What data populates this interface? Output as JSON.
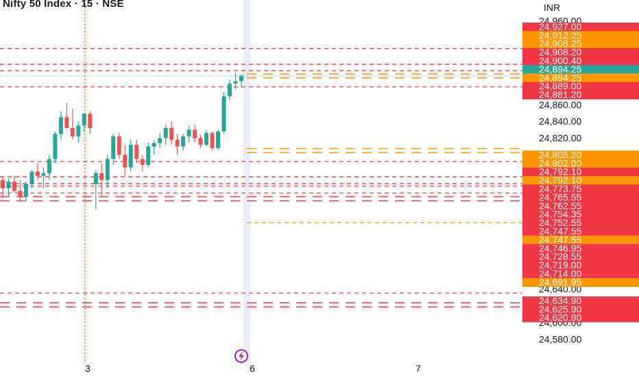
{
  "header": {
    "title": "Nifty 50 Index · 15 · NSE",
    "currency": "INR"
  },
  "event_marker": {
    "icon": "lightning-icon",
    "color": "#9c27b0"
  },
  "colors": {
    "up": "#26a69a",
    "down": "#ef5350",
    "red_line": "#f23645",
    "orange_line": "#ff9800",
    "teal_label": "#26a69a"
  },
  "chart_data": {
    "type": "candlestick",
    "title": "Nifty 50 Index · 15 · NSE",
    "ylabel": "INR",
    "ylim": [
      24572,
      24968
    ],
    "y_ticks": [
      "24,960.00",
      "24,860.00",
      "24,840.00",
      "24,820.00",
      "24,640.00",
      "24,600.00",
      "24,580.00"
    ],
    "x_ticks": [
      "3",
      "6",
      "7"
    ],
    "grid": false,
    "last_price": 24894.25,
    "candles": [
      {
        "o": 24770,
        "h": 24775,
        "l": 24748,
        "c": 24760
      },
      {
        "o": 24760,
        "h": 24772,
        "l": 24750,
        "c": 24768
      },
      {
        "o": 24768,
        "h": 24775,
        "l": 24755,
        "c": 24757
      },
      {
        "o": 24757,
        "h": 24770,
        "l": 24745,
        "c": 24750
      },
      {
        "o": 24750,
        "h": 24768,
        "l": 24745,
        "c": 24765
      },
      {
        "o": 24765,
        "h": 24782,
        "l": 24760,
        "c": 24780
      },
      {
        "o": 24780,
        "h": 24790,
        "l": 24770,
        "c": 24775
      },
      {
        "o": 24775,
        "h": 24785,
        "l": 24760,
        "c": 24778
      },
      {
        "o": 24778,
        "h": 24800,
        "l": 24770,
        "c": 24795
      },
      {
        "o": 24795,
        "h": 24828,
        "l": 24790,
        "c": 24825
      },
      {
        "o": 24825,
        "h": 24852,
        "l": 24818,
        "c": 24845
      },
      {
        "o": 24845,
        "h": 24862,
        "l": 24835,
        "c": 24832
      },
      {
        "o": 24832,
        "h": 24855,
        "l": 24818,
        "c": 24822
      },
      {
        "o": 24822,
        "h": 24840,
        "l": 24815,
        "c": 24835
      },
      {
        "o": 24835,
        "h": 24850,
        "l": 24828,
        "c": 24849
      },
      {
        "o": 24849,
        "h": 24852,
        "l": 24825,
        "c": 24832
      },
      {
        "o": 24765,
        "h": 24782,
        "l": 24735,
        "c": 24778
      },
      {
        "o": 24778,
        "h": 24790,
        "l": 24750,
        "c": 24770
      },
      {
        "o": 24770,
        "h": 24800,
        "l": 24760,
        "c": 24795
      },
      {
        "o": 24795,
        "h": 24825,
        "l": 24788,
        "c": 24822
      },
      {
        "o": 24822,
        "h": 24826,
        "l": 24795,
        "c": 24800
      },
      {
        "o": 24800,
        "h": 24812,
        "l": 24775,
        "c": 24785
      },
      {
        "o": 24785,
        "h": 24818,
        "l": 24780,
        "c": 24812
      },
      {
        "o": 24812,
        "h": 24818,
        "l": 24790,
        "c": 24795
      },
      {
        "o": 24795,
        "h": 24800,
        "l": 24780,
        "c": 24788
      },
      {
        "o": 24788,
        "h": 24815,
        "l": 24785,
        "c": 24810
      },
      {
        "o": 24810,
        "h": 24818,
        "l": 24800,
        "c": 24814
      },
      {
        "o": 24814,
        "h": 24826,
        "l": 24808,
        "c": 24820
      },
      {
        "o": 24820,
        "h": 24836,
        "l": 24812,
        "c": 24832
      },
      {
        "o": 24832,
        "h": 24840,
        "l": 24812,
        "c": 24818
      },
      {
        "o": 24818,
        "h": 24825,
        "l": 24800,
        "c": 24810
      },
      {
        "o": 24810,
        "h": 24825,
        "l": 24805,
        "c": 24822
      },
      {
        "o": 24822,
        "h": 24835,
        "l": 24815,
        "c": 24830
      },
      {
        "o": 24830,
        "h": 24836,
        "l": 24815,
        "c": 24820
      },
      {
        "o": 24820,
        "h": 24824,
        "l": 24808,
        "c": 24812
      },
      {
        "o": 24812,
        "h": 24830,
        "l": 24810,
        "c": 24826
      },
      {
        "o": 24826,
        "h": 24828,
        "l": 24805,
        "c": 24808
      },
      {
        "o": 24808,
        "h": 24830,
        "l": 24806,
        "c": 24828
      },
      {
        "o": 24828,
        "h": 24875,
        "l": 24825,
        "c": 24870
      },
      {
        "o": 24870,
        "h": 24890,
        "l": 24865,
        "c": 24885
      },
      {
        "o": 24885,
        "h": 24898,
        "l": 24878,
        "c": 24888
      },
      {
        "o": 24888,
        "h": 24896,
        "l": 24880,
        "c": 24894.25
      }
    ],
    "level_lines": [
      {
        "price": 24927.0,
        "color": "#f23645",
        "style": "dashed"
      },
      {
        "price": 24908.2,
        "color": "#f23645",
        "style": "dashed"
      },
      {
        "price": 24900.4,
        "color": "#f23645",
        "style": "dashed"
      },
      {
        "price": 24894.25,
        "color": "#ff9800",
        "style": "double-dashed"
      },
      {
        "price": 24881.2,
        "color": "#f23645",
        "style": "dashed"
      },
      {
        "price": 24805.2,
        "color": "#ff9800",
        "style": "double-dashed"
      },
      {
        "price": 24792.1,
        "color": "#f23645",
        "style": "dashed"
      },
      {
        "price": 24773.75,
        "color": "#f23645",
        "style": "dashed"
      },
      {
        "price": 24765.55,
        "color": "#f23645",
        "style": "dashed"
      },
      {
        "price": 24762.55,
        "color": "#f23645",
        "style": "dashed"
      },
      {
        "price": 24754.35,
        "color": "#f23645",
        "style": "dashed"
      },
      {
        "price": 24747.55,
        "color": "#f23645",
        "style": "double-dashed"
      },
      {
        "price": 24719.0,
        "color": "#ff9800",
        "style": "dashed"
      },
      {
        "price": 24634.9,
        "color": "#f23645",
        "style": "dashed"
      },
      {
        "price": 24620.9,
        "color": "#f23645",
        "style": "double-dashed"
      }
    ],
    "price_labels": [
      {
        "text": "24,927.00",
        "price": 24927.0,
        "color": "#f23645"
      },
      {
        "text": "24,912.25",
        "price": 24912.25,
        "color": "#ff9800"
      },
      {
        "text": "24,908.25",
        "price": 24908.25,
        "color": "#ff9800"
      },
      {
        "text": "24,908.20",
        "price": 24908.2,
        "color": "#f23645"
      },
      {
        "text": "24,900.40",
        "price": 24900.4,
        "color": "#f23645"
      },
      {
        "text": "24,894.25",
        "price": 24894.25,
        "color": "#26a69a"
      },
      {
        "text": "24,894.25",
        "price": 24894.25,
        "color": "#ff9800"
      },
      {
        "text": "24,889.00",
        "price": 24889.0,
        "color": "#f23645"
      },
      {
        "text": "24,881.20",
        "price": 24881.2,
        "color": "#f23645"
      },
      {
        "text": "24,805.20",
        "price": 24805.2,
        "color": "#ff9800"
      },
      {
        "text": "24,802.00",
        "price": 24802.0,
        "color": "#ff9800"
      },
      {
        "text": "24,792.10",
        "price": 24792.1,
        "color": "#f23645"
      },
      {
        "text": "24,792.10",
        "price": 24792.1,
        "color": "#ff9800"
      },
      {
        "text": "24,773.75",
        "price": 24773.75,
        "color": "#f23645"
      },
      {
        "text": "24,765.55",
        "price": 24765.55,
        "color": "#f23645"
      },
      {
        "text": "24,762.55",
        "price": 24762.55,
        "color": "#f23645"
      },
      {
        "text": "24,754.35",
        "price": 24754.35,
        "color": "#f23645"
      },
      {
        "text": "24,752.55",
        "price": 24752.55,
        "color": "#f23645"
      },
      {
        "text": "24,747.55",
        "price": 24747.55,
        "color": "#f23645"
      },
      {
        "text": "24,747.55",
        "price": 24747.55,
        "color": "#ff9800"
      },
      {
        "text": "24,746.95",
        "price": 24746.95,
        "color": "#f23645"
      },
      {
        "text": "24,728.55",
        "price": 24728.55,
        "color": "#f23645"
      },
      {
        "text": "24,719.00",
        "price": 24719.0,
        "color": "#f23645"
      },
      {
        "text": "24,714.00",
        "price": 24714.0,
        "color": "#f23645"
      },
      {
        "text": "24,691.95",
        "price": 24691.95,
        "color": "#ff9800"
      },
      {
        "text": "24,634.90",
        "price": 24634.9,
        "color": "#f23645"
      },
      {
        "text": "24,625.90",
        "price": 24625.9,
        "color": "#f23645"
      },
      {
        "text": "24,620.90",
        "price": 24620.9,
        "color": "#f23645"
      }
    ]
  }
}
